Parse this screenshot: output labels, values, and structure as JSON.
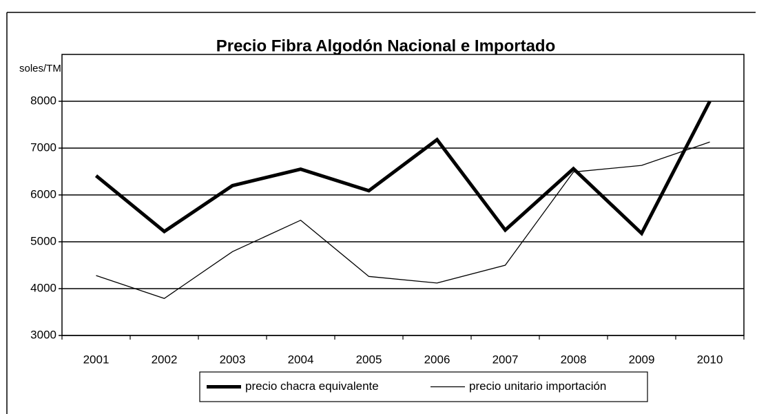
{
  "chart_data": {
    "type": "line",
    "title": "Precio Fibra Algodón Nacional e Importado",
    "ylabel": "soles/TM",
    "categories": [
      "2001",
      "2002",
      "2003",
      "2004",
      "2005",
      "2006",
      "2007",
      "2008",
      "2009",
      "2010"
    ],
    "series": [
      {
        "name": "precio chacra equivalente",
        "color": "#000000",
        "values": [
          6410,
          5220,
          6200,
          6550,
          6090,
          7180,
          5250,
          6560,
          5180,
          8000
        ]
      },
      {
        "name": "precio unitario importación",
        "color": "#000000",
        "values": [
          4280,
          3790,
          4790,
          5460,
          4260,
          4120,
          4500,
          6490,
          6630,
          7130
        ]
      }
    ],
    "ylim": [
      3000,
      9000
    ],
    "yticks": [
      3000,
      4000,
      5000,
      6000,
      7000,
      8000
    ],
    "grid": true,
    "legend": "bottom"
  }
}
